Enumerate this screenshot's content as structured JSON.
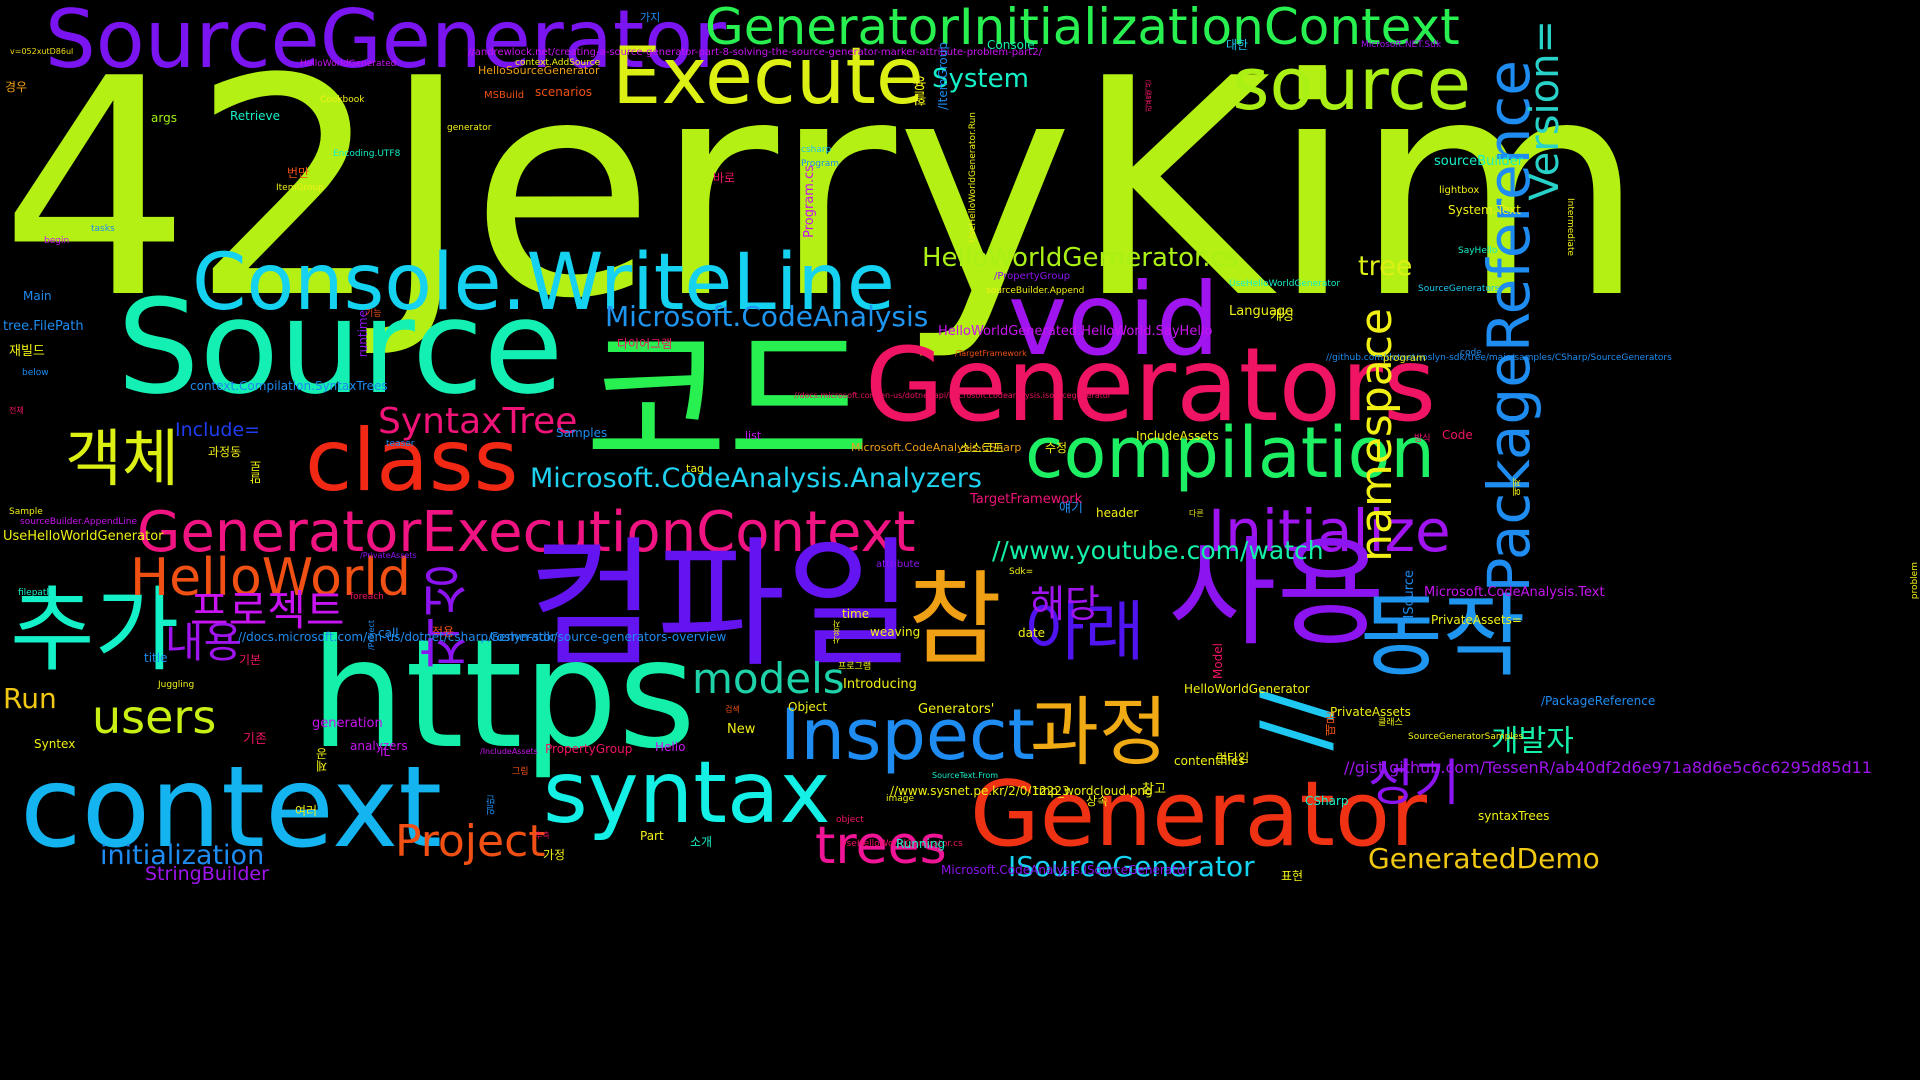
{
  "words": [
    {
      "text": "42JerryKim",
      "color": "#b4f014"
    },
    {
      "text": "SourceGenerator",
      "color": "#7a14f0"
    },
    {
      "text": "GeneratorInitializationContext",
      "color": "#28f050"
    },
    {
      "text": "Execute",
      "color": "#dcf014"
    },
    {
      "text": "source",
      "color": "#aaf014"
    },
    {
      "text": "PackageReference",
      "color": "#1e8cf0"
    },
    {
      "text": "Version=",
      "color": "#28d2c8"
    },
    {
      "text": "Console.WriteLine",
      "color": "#14d2f0"
    },
    {
      "text": "void",
      "color": "#a014f0"
    },
    {
      "text": "Source",
      "color": "#14f0b4"
    },
    {
      "text": "코드",
      "color": "#28f050"
    },
    {
      "text": "Generators",
      "color": "#f01464"
    },
    {
      "text": "class",
      "color": "#f02814"
    },
    {
      "text": "compilation",
      "color": "#1ef064"
    },
    {
      "text": "객체",
      "color": "#dcf014"
    },
    {
      "text": "GeneratorExecutionContext",
      "color": "#f01482"
    },
    {
      "text": "Initialize",
      "color": "#a014f0"
    },
    {
      "text": "컴파일",
      "color": "#6414f0"
    },
    {
      "text": "사용",
      "color": "#8c14f0"
    },
    {
      "text": "https",
      "color": "#14f0aa"
    },
    {
      "text": "context",
      "color": "#14b4f0"
    },
    {
      "text": "syntax",
      "color": "#14f0e6"
    },
    {
      "text": "Generator",
      "color": "#f03214"
    },
    {
      "text": "참",
      "color": "#f0a014"
    },
    {
      "text": "추가",
      "color": "#14f0c8"
    },
    {
      "text": "동작",
      "color": "#1e96f0"
    },
    {
      "text": "//",
      "color": "#1ec8f0"
    },
    {
      "text": "Inspect",
      "color": "#1e8cf0"
    },
    {
      "text": "과정",
      "color": "#f0aa14"
    },
    {
      "text": "아래",
      "color": "#5014f0"
    },
    {
      "text": "HelloWorld",
      "color": "#f05014"
    },
    {
      "text": "users",
      "color": "#c8f014"
    },
    {
      "text": "trees",
      "color": "#f01496"
    },
    {
      "text": "Project",
      "color": "#f05014"
    },
    {
      "text": "models",
      "color": "#1ed2aa"
    },
    {
      "text": "프로젝트",
      "color": "#c814f0"
    },
    {
      "text": "작성",
      "color": "#8c14f0"
    },
    {
      "text": "내용",
      "color": "#a014f0"
    },
    {
      "text": "HelloWorldGernerator.cs",
      "color": "#aaf014"
    },
    {
      "text": "Microsoft.CodeAnalysis",
      "color": "#1e96f0"
    },
    {
      "text": "Microsoft.CodeAnalysis.Analyzers",
      "color": "#1ed2f0"
    },
    {
      "text": "SyntaxTree",
      "color": "#f01478"
    },
    {
      "text": "Include=",
      "color": "#1e3cf0"
    },
    {
      "text": "//www.youtube.com/watch",
      "color": "#14f0aa"
    },
    {
      "text": "namespace",
      "color": "#f0f014"
    },
    {
      "text": "해당",
      "color": "#a014f0"
    },
    {
      "text": "성기",
      "color": "#8c14f0"
    },
    {
      "text": "개발자",
      "color": "#14f0aa"
    },
    {
      "text": "tree",
      "color": "#dcf014"
    },
    {
      "text": "System",
      "color": "#14f0c8"
    },
    {
      "text": "Run",
      "color": "#f0c814"
    },
    {
      "text": "initialization",
      "color": "#1e8cf0"
    },
    {
      "text": "ISourceGenerator",
      "color": "#14d2f0"
    },
    {
      "text": "GeneratedDemo",
      "color": "#f0c814"
    },
    {
      "text": "StringBuilder",
      "color": "#a014f0"
    },
    {
      "text": "//gist.github.com/TessenR/ab40df2d6e971a8d6e5c6c6295d85d11",
      "color": "#a014f0"
    },
    {
      "text": "v=052xutD86ul",
      "color": "#f0dc14"
    },
    {
      "text": "//andrewlock.net/creating-a-source-generator-part-8-solving-the-source-generator-marker-attribute-problem-part2/",
      "color": "#c814f0"
    },
    {
      "text": "context.AddSource",
      "color": "#f0f014"
    },
    {
      "text": "HelloWorldGenerated",
      "color": "#c814f0"
    },
    {
      "text": "HelloSourceGenerator",
      "color": "#f0a014"
    },
    {
      "text": "scenarios",
      "color": "#f05014"
    },
    {
      "text": "MSBuild",
      "color": "#f05014"
    },
    {
      "text": "Cookbook",
      "color": "#f0f014"
    },
    {
      "text": "generator",
      "color": "#f0f014"
    },
    {
      "text": "args",
      "color": "#a0f014"
    },
    {
      "text": "Retrieve",
      "color": "#14f0c8"
    },
    {
      "text": "경우",
      "color": "#f0a014"
    },
    {
      "text": "가지",
      "color": "#1e8cf0"
    },
    {
      "text": "대한",
      "color": "#1ec8f0"
    },
    {
      "text": "Microsoft.NET.Sdk",
      "color": "#a014f0"
    },
    {
      "text": "Console",
      "color": "#14f0aa"
    },
    {
      "text": "/ItemGroup",
      "color": "#1e8cf0"
    },
    {
      "text": "활용",
      "color": "#f0f014"
    },
    {
      "text": "리플렉션",
      "color": "#f01464"
    },
    {
      "text": "UseHelloWorldGenerator.Run",
      "color": "#f0f014"
    },
    {
      "text": "csharp",
      "color": "#1ec8f0"
    },
    {
      "text": "Program",
      "color": "#1e8cf0"
    },
    {
      "text": "Program.cs",
      "color": "#c814f0"
    },
    {
      "text": "바로",
      "color": "#f01464"
    },
    {
      "text": "번만",
      "color": "#f05014"
    },
    {
      "text": "ItemGroup",
      "color": "#f0f014"
    },
    {
      "text": "Encoding.UTF8",
      "color": "#14f0c8"
    },
    {
      "text": "sourceBuilder",
      "color": "#14f0c8"
    },
    {
      "text": "lightbox",
      "color": "#f0f014"
    },
    {
      "text": "System.Text",
      "color": "#f0f014"
    },
    {
      "text": "tasks",
      "color": "#1e8cf0"
    },
    {
      "text": "begin",
      "color": "#c814f0"
    },
    {
      "text": "SayHello",
      "color": "#14f0c8"
    },
    {
      "text": "Main",
      "color": "#1e8cf0"
    },
    {
      "text": "/PropertyGroup",
      "color": "#8c14f0"
    },
    {
      "text": "sourceBuilder.Append",
      "color": "#f0f014"
    },
    {
      "text": "UseHelloWorldGenerator",
      "color": "#14f0c8"
    },
    {
      "text": "SourceGenerators",
      "color": "#1ec8f0"
    },
    {
      "text": "tree.FilePath",
      "color": "#1e8cf0"
    },
    {
      "text": "재빌드",
      "color": "#f0f014"
    },
    {
      "text": "runtime",
      "color": "#8c14f0"
    },
    {
      "text": "기능",
      "color": "#f05014"
    },
    {
      "text": "HelloWorldGenerated.HelloWorld.SayHello",
      "color": "#c814f0"
    },
    {
      "text": "Language",
      "color": "#f0f014"
    },
    {
      "text": "캐싱",
      "color": "#f0f014"
    },
    {
      "text": "다이어그램",
      "color": "#f01464"
    },
    {
      "text": "/TargetFramework",
      "color": "#f05014"
    },
    {
      "text": "//github.com/dotnet/roslyn-sdk/tree/main/samples/CSharp/SourceGenerators",
      "color": "#1e8cf0"
    },
    {
      "text": "program",
      "color": "#f0f014"
    },
    {
      "text": "code",
      "color": "#1e8cf0"
    },
    {
      "text": "below",
      "color": "#1e8cf0"
    },
    {
      "text": "context.Compilation.SyntaxTrees",
      "color": "#1e8cf0"
    },
    {
      "text": "전체",
      "color": "#f01464"
    },
    {
      "text": "//docs.microsoft.com/en-us/dotnet/api/microsoft.codeanalysis.isourcegenerator",
      "color": "#f01464"
    },
    {
      "text": "Samples",
      "color": "#1e8cf0"
    },
    {
      "text": "teaser",
      "color": "#1e8cf0"
    },
    {
      "text": "list",
      "color": "#c814f0"
    },
    {
      "text": "Microsoft.CodeAnalysis.CSharp",
      "color": "#f0a014"
    },
    {
      "text": "IncludeAssets",
      "color": "#f0f014"
    },
    {
      "text": "방식",
      "color": "#f01478"
    },
    {
      "text": "Code",
      "color": "#f01464"
    },
    {
      "text": "과정동",
      "color": "#f0f014"
    },
    {
      "text": "말로",
      "color": "#f0f014"
    },
    {
      "text": "소스코드",
      "color": "#f0f014"
    },
    {
      "text": "수정",
      "color": "#f0f014"
    },
    {
      "text": "예제",
      "color": "#f0f014"
    },
    {
      "text": "tag",
      "color": "#f0f014"
    },
    {
      "text": "얘기",
      "color": "#1e8cf0"
    },
    {
      "text": "header",
      "color": "#f0f014"
    },
    {
      "text": "다른",
      "color": "#f0f014"
    },
    {
      "text": "Sample",
      "color": "#f0f014"
    },
    {
      "text": "sourceBuilder.AppendLine",
      "color": "#c814f0"
    },
    {
      "text": "UseHelloWorldGenerator",
      "color": "#f0f014"
    },
    {
      "text": "TargetFramework",
      "color": "#f01478"
    },
    {
      "text": "/PrivateAssets",
      "color": "#8c14f0"
    },
    {
      "text": "attribute",
      "color": "#8c14f0"
    },
    {
      "text": "filepath",
      "color": "#14f0c8"
    },
    {
      "text": "foreach",
      "color": "#f01464"
    },
    {
      "text": "problem",
      "color": "#f0f014"
    },
    {
      "text": "Sdk=",
      "color": "#f0f014"
    },
    {
      "text": "Microsoft.CodeAnalysis.Text",
      "color": "#c814f0"
    },
    {
      "text": "ISource",
      "color": "#1e8cf0"
    },
    {
      "text": "/Project",
      "color": "#1e8cf0"
    },
    {
      "text": "call",
      "color": "#1e8cf0"
    },
    {
      "text": "적용",
      "color": "#f05014"
    },
    {
      "text": "사용자",
      "color": "#f0f014"
    },
    {
      "text": "time",
      "color": "#f0f014"
    },
    {
      "text": "date",
      "color": "#f0f014"
    },
    {
      "text": "PrivateAssets=",
      "color": "#f0f014"
    },
    {
      "text": "Gernerator",
      "color": "#1e8cf0"
    },
    {
      "text": "weaving",
      "color": "#f0f014"
    },
    {
      "text": "Model",
      "color": "#f01464"
    },
    {
      "text": "title",
      "color": "#1e8cf0"
    },
    {
      "text": "기본",
      "color": "#f01464"
    },
    {
      "text": "프로그램",
      "color": "#f0f014"
    },
    {
      "text": "Introducing",
      "color": "#f0f014"
    },
    {
      "text": "Juggling",
      "color": "#f0f014"
    },
    {
      "text": "HelloWorldGenerator",
      "color": "#f0f014"
    },
    {
      "text": "/PackageReference",
      "color": "#1e8cf0"
    },
    {
      "text": "검색",
      "color": "#f05014"
    },
    {
      "text": "New",
      "color": "#f0f014"
    },
    {
      "text": "Object",
      "color": "#f0f014"
    },
    {
      "text": "Generators'",
      "color": "#f0f014"
    },
    {
      "text": "PrivateAssets",
      "color": "#f0f014"
    },
    {
      "text": "클래스",
      "color": "#f0f014"
    },
    {
      "text": "SourceGeneratorSamples",
      "color": "#f0f014"
    },
    {
      "text": "generation",
      "color": "#c814f0"
    },
    {
      "text": "기존",
      "color": "#f01464"
    },
    {
      "text": "Syntex",
      "color": "#f0f014"
    },
    {
      "text": "analyzers",
      "color": "#c814f0"
    },
    {
      "text": "IL",
      "color": "#c814f0"
    },
    {
      "text": "/IncludeAssets",
      "color": "#c814f0"
    },
    {
      "text": "Hello",
      "color": "#c814f0"
    },
    {
      "text": "PropertyGroup",
      "color": "#f01464"
    },
    {
      "text": "때문",
      "color": "#f05014"
    },
    {
      "text": "contentfiles",
      "color": "#f0f014"
    },
    {
      "text": "런타임",
      "color": "#f0f014"
    },
    {
      "text": "제공",
      "color": "#f0f014"
    },
    {
      "text": "그림",
      "color": "#f05014"
    },
    {
      "text": "SourceText.From",
      "color": "#14f0c8"
    },
    {
      "text": "//www.sysnet.pe.kr/2/0/12223",
      "color": "#f0f014"
    },
    {
      "text": "tmp_wordcloud.png",
      "color": "#f0f014"
    },
    {
      "text": "상속",
      "color": "#f0f014"
    },
    {
      "text": "참고",
      "color": "#f0f014"
    },
    {
      "text": "CSharp",
      "color": "#14f0c8"
    },
    {
      "text": "여러",
      "color": "#f0f014"
    },
    {
      "text": "일반",
      "color": "#1e8cf0"
    },
    {
      "text": "image",
      "color": "#f0f014"
    },
    {
      "text": "syntaxTrees",
      "color": "#f0f014"
    },
    {
      "text": "추측",
      "color": "#f01464"
    },
    {
      "text": "Part",
      "color": "#f0f014"
    },
    {
      "text": "소개",
      "color": "#14f0c8"
    },
    {
      "text": "object",
      "color": "#f01464"
    },
    {
      "text": "UseHelloWorldGenerator.cs",
      "color": "#f01464"
    },
    {
      "text": "Running",
      "color": "#14f0c8"
    },
    {
      "text": "가정",
      "color": "#f0f014"
    },
    {
      "text": "Microsoft.CodeAnalysis.ISourceGenerator",
      "color": "#8c14f0"
    },
    {
      "text": "표현",
      "color": "#f0f014"
    },
    {
      "text": "Intermediate",
      "color": "#f0f014"
    },
    {
      "text": "//docs.microsoft.com/en-us/dotnet/csharp/roslyn-sdk/source-generators-overview",
      "color": "#1e8cf0"
    },
    {
      "text": "프로그램",
      "color": "#f0f014"
    }
  ]
}
